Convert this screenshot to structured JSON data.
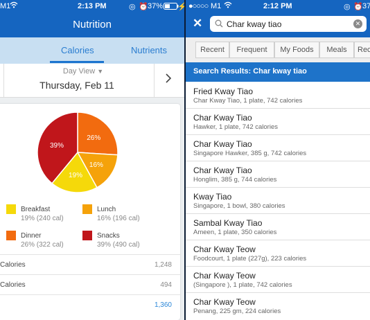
{
  "left": {
    "status": {
      "carrier": "M1",
      "time": "2:13 PM",
      "battery": "37%"
    },
    "title": "Nutrition",
    "tabs": [
      {
        "label": "Calories",
        "active": true
      },
      {
        "label": "Nutrients",
        "active": false
      }
    ],
    "date_nav": {
      "view_label": "Day View",
      "date": "Thursday, Feb 11",
      "next_icon": "chevron-right-icon"
    },
    "legend": [
      {
        "name": "Breakfast",
        "detail": "19% (240 cal)",
        "color": "#f5d90a"
      },
      {
        "name": "Lunch",
        "detail": "16% (196 cal)",
        "color": "#f5a20a"
      },
      {
        "name": "Dinner",
        "detail": "26% (322 cal)",
        "color": "#f26b0f"
      },
      {
        "name": "Snacks",
        "detail": "39% (490 cal)",
        "color": "#c0161b"
      }
    ],
    "rows": [
      {
        "label": "Calories",
        "value": "1,248"
      },
      {
        "label": "Calories",
        "value": "494"
      },
      {
        "label": "",
        "value": "1,360"
      }
    ]
  },
  "chart_data": {
    "type": "pie",
    "labels": [
      "Breakfast",
      "Lunch",
      "Dinner",
      "Snacks"
    ],
    "values": [
      19,
      16,
      26,
      39
    ],
    "slice_labels": [
      "19%",
      "16%",
      "26%",
      "39%"
    ],
    "colors": [
      "#f5d90a",
      "#f5a20a",
      "#f26b0f",
      "#c0161b"
    ]
  },
  "right": {
    "status": {
      "carrier": "M1",
      "time": "2:12 PM",
      "battery": "37"
    },
    "search": {
      "value": "Char kway tiao"
    },
    "tabs": [
      "Recent",
      "Frequent",
      "My Foods",
      "Meals",
      "Rec"
    ],
    "results_header": "Search Results: Char kway tiao",
    "results": [
      {
        "title": "Fried Kway Tiao",
        "detail": "Char Kway Tiao, 1 plate, 742 calories"
      },
      {
        "title": "Char Kway Tiao",
        "detail": "Hawker, 1 plate, 742 calories"
      },
      {
        "title": "Char Kway Tiao",
        "detail": "Singapore Hawker, 385 g, 742 calories"
      },
      {
        "title": "Char Kway Tiao",
        "detail": "Honglim, 385 g, 744 calories"
      },
      {
        "title": "Kway Tiao",
        "detail": "Singapore, 1 bowl, 380 calories"
      },
      {
        "title": "Sambal Kway Tiao",
        "detail": "Ameen, 1 plate, 350 calories"
      },
      {
        "title": "Char Kway Teow",
        "detail": "Foodcourt, 1 plate (227g), 223 calories"
      },
      {
        "title": "Char Kway Teow",
        "detail": "(Singapore ), 1 plate, 742 calories"
      },
      {
        "title": "Char Kway Teow",
        "detail": "Penang, 225 gm, 224 calories"
      }
    ]
  }
}
